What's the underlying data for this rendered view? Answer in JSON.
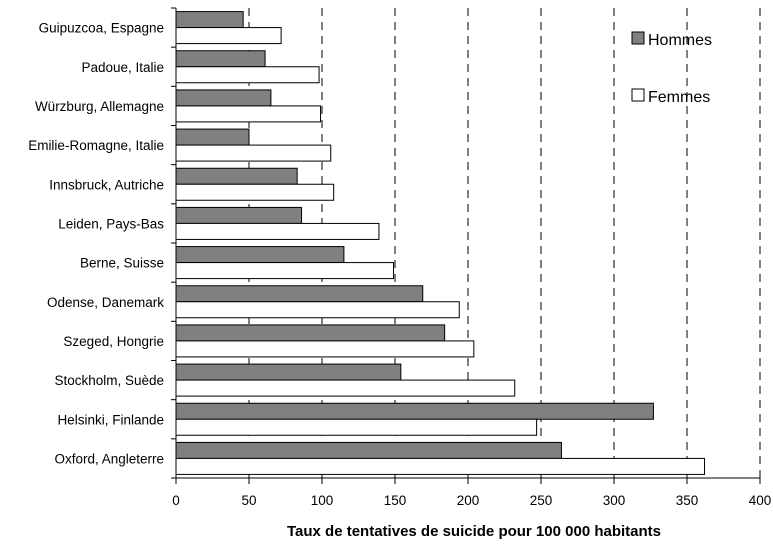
{
  "chart_data": {
    "type": "bar",
    "orientation": "horizontal",
    "categories": [
      "Guipuzcoa, Espagne",
      "Padoue, Italie",
      "Würzburg, Allemagne",
      "Emilie-Romagne, Italie",
      "Innsbruck, Autriche",
      "Leiden, Pays-Bas",
      "Berne, Suisse",
      "Odense, Danemark",
      "Szeged, Hongrie",
      "Stockholm, Suède",
      "Helsinki, Finlande",
      "Oxford, Angleterre"
    ],
    "series": [
      {
        "name": "Hommes",
        "color": "#808080",
        "values": [
          46,
          61,
          65,
          50,
          83,
          86,
          115,
          169,
          184,
          154,
          327,
          264
        ]
      },
      {
        "name": "Femmes",
        "color": "#ffffff",
        "values": [
          72,
          98,
          99,
          106,
          108,
          139,
          149,
          194,
          204,
          232,
          247,
          362
        ]
      }
    ],
    "xlabel": "Taux de tentatives de suicide pour 100 000 habitants",
    "ylabel": "",
    "title": "",
    "xlim": [
      0,
      400
    ],
    "xticks": [
      0,
      50,
      100,
      150,
      200,
      250,
      300,
      350,
      400
    ],
    "grid": "vertical-dashed",
    "legend_position": "top-right"
  }
}
